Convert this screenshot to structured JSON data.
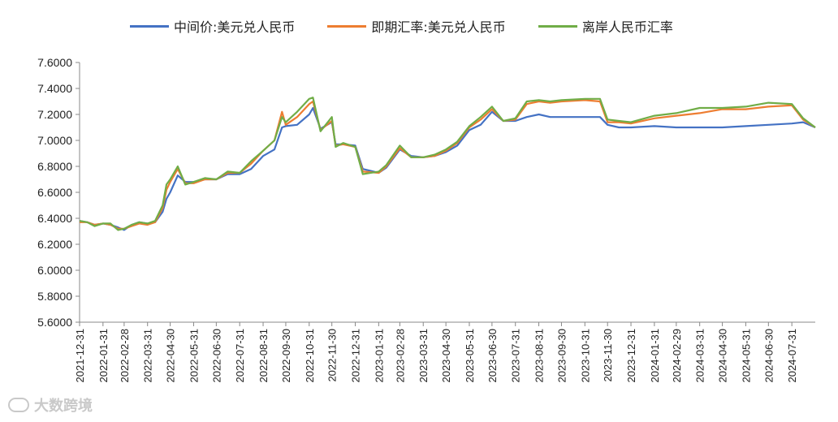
{
  "chart_data": {
    "type": "line",
    "title": "",
    "xlabel": "",
    "ylabel": "",
    "ylim": [
      5.6,
      7.6
    ],
    "y_ticks": [
      "5.6000",
      "5.8000",
      "6.0000",
      "6.2000",
      "6.4000",
      "6.6000",
      "6.8000",
      "7.0000",
      "7.2000",
      "7.4000",
      "7.6000"
    ],
    "x_ticks": [
      "2021-12-31",
      "2022-01-31",
      "2022-02-28",
      "2022-03-31",
      "2022-04-30",
      "2022-05-31",
      "2022-06-30",
      "2022-07-31",
      "2022-08-31",
      "2022-09-30",
      "2022-10-31",
      "2022-11-30",
      "2022-12-31",
      "2023-01-31",
      "2023-02-28",
      "2023-03-31",
      "2023-04-30",
      "2023-05-31",
      "2023-06-30",
      "2023-07-31",
      "2023-08-31",
      "2023-09-30",
      "2023-10-31",
      "2023-11-30",
      "2023-12-31",
      "2024-01-31",
      "2024-02-29",
      "2024-03-31",
      "2024-04-30",
      "2024-05-31",
      "2024-06-30",
      "2024-07-31"
    ],
    "x_range": [
      "2021-12-31",
      "2024-08-31"
    ],
    "legend_position": "top",
    "grid": false,
    "series": [
      {
        "name": "中间价:美元兑人民币",
        "color": "#4472C4",
        "points": [
          [
            "2021-12-31",
            6.38
          ],
          [
            "2022-01-10",
            6.37
          ],
          [
            "2022-01-20",
            6.35
          ],
          [
            "2022-01-31",
            6.36
          ],
          [
            "2022-02-10",
            6.35
          ],
          [
            "2022-02-20",
            6.33
          ],
          [
            "2022-02-28",
            6.31
          ],
          [
            "2022-03-10",
            6.35
          ],
          [
            "2022-03-20",
            6.37
          ],
          [
            "2022-03-31",
            6.36
          ],
          [
            "2022-04-10",
            6.37
          ],
          [
            "2022-04-20",
            6.45
          ],
          [
            "2022-04-25",
            6.55
          ],
          [
            "2022-04-30",
            6.6
          ],
          [
            "2022-05-10",
            6.73
          ],
          [
            "2022-05-20",
            6.68
          ],
          [
            "2022-05-31",
            6.68
          ],
          [
            "2022-06-15",
            6.7
          ],
          [
            "2022-06-30",
            6.7
          ],
          [
            "2022-07-15",
            6.74
          ],
          [
            "2022-07-31",
            6.74
          ],
          [
            "2022-08-15",
            6.78
          ],
          [
            "2022-08-31",
            6.88
          ],
          [
            "2022-09-15",
            6.93
          ],
          [
            "2022-09-25",
            7.1
          ],
          [
            "2022-09-30",
            7.11
          ],
          [
            "2022-10-15",
            7.12
          ],
          [
            "2022-10-31",
            7.2
          ],
          [
            "2022-11-05",
            7.25
          ],
          [
            "2022-11-15",
            7.09
          ],
          [
            "2022-11-30",
            7.14
          ],
          [
            "2022-12-05",
            6.97
          ],
          [
            "2022-12-15",
            6.97
          ],
          [
            "2022-12-31",
            6.96
          ],
          [
            "2023-01-10",
            6.78
          ],
          [
            "2023-01-31",
            6.75
          ],
          [
            "2023-02-10",
            6.79
          ],
          [
            "2023-02-28",
            6.93
          ],
          [
            "2023-03-15",
            6.88
          ],
          [
            "2023-03-31",
            6.87
          ],
          [
            "2023-04-15",
            6.88
          ],
          [
            "2023-04-30",
            6.91
          ],
          [
            "2023-05-15",
            6.96
          ],
          [
            "2023-05-31",
            7.08
          ],
          [
            "2023-06-15",
            7.12
          ],
          [
            "2023-06-30",
            7.22
          ],
          [
            "2023-07-15",
            7.15
          ],
          [
            "2023-07-31",
            7.15
          ],
          [
            "2023-08-15",
            7.18
          ],
          [
            "2023-08-31",
            7.2
          ],
          [
            "2023-09-15",
            7.18
          ],
          [
            "2023-09-30",
            7.18
          ],
          [
            "2023-10-31",
            7.18
          ],
          [
            "2023-11-20",
            7.18
          ],
          [
            "2023-11-30",
            7.12
          ],
          [
            "2023-12-15",
            7.1
          ],
          [
            "2023-12-31",
            7.1
          ],
          [
            "2024-01-31",
            7.11
          ],
          [
            "2024-02-29",
            7.1
          ],
          [
            "2024-03-31",
            7.1
          ],
          [
            "2024-04-30",
            7.1
          ],
          [
            "2024-05-31",
            7.11
          ],
          [
            "2024-06-30",
            7.12
          ],
          [
            "2024-07-31",
            7.13
          ],
          [
            "2024-08-15",
            7.14
          ],
          [
            "2024-08-31",
            7.1
          ]
        ]
      },
      {
        "name": "即期汇率:美元兑人民币",
        "color": "#ED7D31",
        "points": [
          [
            "2021-12-31",
            6.37
          ],
          [
            "2022-01-10",
            6.37
          ],
          [
            "2022-01-20",
            6.35
          ],
          [
            "2022-01-31",
            6.36
          ],
          [
            "2022-02-10",
            6.35
          ],
          [
            "2022-02-20",
            6.32
          ],
          [
            "2022-02-28",
            6.32
          ],
          [
            "2022-03-10",
            6.34
          ],
          [
            "2022-03-20",
            6.36
          ],
          [
            "2022-03-31",
            6.35
          ],
          [
            "2022-04-10",
            6.37
          ],
          [
            "2022-04-20",
            6.48
          ],
          [
            "2022-04-25",
            6.62
          ],
          [
            "2022-04-30",
            6.68
          ],
          [
            "2022-05-10",
            6.78
          ],
          [
            "2022-05-20",
            6.67
          ],
          [
            "2022-05-31",
            6.67
          ],
          [
            "2022-06-15",
            6.7
          ],
          [
            "2022-06-30",
            6.7
          ],
          [
            "2022-07-15",
            6.75
          ],
          [
            "2022-07-31",
            6.75
          ],
          [
            "2022-08-15",
            6.82
          ],
          [
            "2022-08-31",
            6.92
          ],
          [
            "2022-09-15",
            7.0
          ],
          [
            "2022-09-25",
            7.22
          ],
          [
            "2022-09-30",
            7.12
          ],
          [
            "2022-10-15",
            7.18
          ],
          [
            "2022-10-31",
            7.28
          ],
          [
            "2022-11-05",
            7.3
          ],
          [
            "2022-11-15",
            7.08
          ],
          [
            "2022-11-30",
            7.15
          ],
          [
            "2022-12-05",
            6.96
          ],
          [
            "2022-12-15",
            6.97
          ],
          [
            "2022-12-31",
            6.95
          ],
          [
            "2023-01-10",
            6.76
          ],
          [
            "2023-01-31",
            6.75
          ],
          [
            "2023-02-10",
            6.8
          ],
          [
            "2023-02-28",
            6.94
          ],
          [
            "2023-03-15",
            6.87
          ],
          [
            "2023-03-31",
            6.87
          ],
          [
            "2023-04-15",
            6.88
          ],
          [
            "2023-04-30",
            6.92
          ],
          [
            "2023-05-15",
            6.98
          ],
          [
            "2023-05-31",
            7.1
          ],
          [
            "2023-06-15",
            7.16
          ],
          [
            "2023-06-30",
            7.24
          ],
          [
            "2023-07-15",
            7.15
          ],
          [
            "2023-07-31",
            7.16
          ],
          [
            "2023-08-15",
            7.28
          ],
          [
            "2023-08-31",
            7.3
          ],
          [
            "2023-09-15",
            7.29
          ],
          [
            "2023-09-30",
            7.3
          ],
          [
            "2023-10-31",
            7.31
          ],
          [
            "2023-11-20",
            7.3
          ],
          [
            "2023-11-30",
            7.14
          ],
          [
            "2023-12-15",
            7.14
          ],
          [
            "2023-12-31",
            7.13
          ],
          [
            "2024-01-31",
            7.17
          ],
          [
            "2024-02-29",
            7.19
          ],
          [
            "2024-03-31",
            7.21
          ],
          [
            "2024-04-30",
            7.24
          ],
          [
            "2024-05-31",
            7.24
          ],
          [
            "2024-06-30",
            7.26
          ],
          [
            "2024-07-31",
            7.27
          ],
          [
            "2024-08-15",
            7.16
          ],
          [
            "2024-08-31",
            7.1
          ]
        ]
      },
      {
        "name": "离岸人民币汇率",
        "color": "#70AD47",
        "points": [
          [
            "2021-12-31",
            6.38
          ],
          [
            "2022-01-10",
            6.37
          ],
          [
            "2022-01-20",
            6.34
          ],
          [
            "2022-01-31",
            6.36
          ],
          [
            "2022-02-10",
            6.36
          ],
          [
            "2022-02-20",
            6.31
          ],
          [
            "2022-02-28",
            6.32
          ],
          [
            "2022-03-10",
            6.35
          ],
          [
            "2022-03-20",
            6.37
          ],
          [
            "2022-03-31",
            6.36
          ],
          [
            "2022-04-10",
            6.38
          ],
          [
            "2022-04-20",
            6.5
          ],
          [
            "2022-04-25",
            6.66
          ],
          [
            "2022-04-30",
            6.7
          ],
          [
            "2022-05-10",
            6.8
          ],
          [
            "2022-05-20",
            6.66
          ],
          [
            "2022-05-31",
            6.68
          ],
          [
            "2022-06-15",
            6.71
          ],
          [
            "2022-06-30",
            6.7
          ],
          [
            "2022-07-15",
            6.76
          ],
          [
            "2022-07-31",
            6.75
          ],
          [
            "2022-08-15",
            6.84
          ],
          [
            "2022-08-31",
            6.92
          ],
          [
            "2022-09-15",
            7.0
          ],
          [
            "2022-09-25",
            7.18
          ],
          [
            "2022-09-30",
            7.14
          ],
          [
            "2022-10-15",
            7.22
          ],
          [
            "2022-10-31",
            7.32
          ],
          [
            "2022-11-05",
            7.33
          ],
          [
            "2022-11-15",
            7.07
          ],
          [
            "2022-11-30",
            7.18
          ],
          [
            "2022-12-05",
            6.95
          ],
          [
            "2022-12-15",
            6.98
          ],
          [
            "2022-12-31",
            6.95
          ],
          [
            "2023-01-10",
            6.74
          ],
          [
            "2023-01-31",
            6.76
          ],
          [
            "2023-02-10",
            6.81
          ],
          [
            "2023-02-28",
            6.96
          ],
          [
            "2023-03-15",
            6.87
          ],
          [
            "2023-03-31",
            6.87
          ],
          [
            "2023-04-15",
            6.89
          ],
          [
            "2023-04-30",
            6.93
          ],
          [
            "2023-05-15",
            6.99
          ],
          [
            "2023-05-31",
            7.11
          ],
          [
            "2023-06-15",
            7.18
          ],
          [
            "2023-06-30",
            7.26
          ],
          [
            "2023-07-15",
            7.15
          ],
          [
            "2023-07-31",
            7.17
          ],
          [
            "2023-08-15",
            7.3
          ],
          [
            "2023-08-31",
            7.31
          ],
          [
            "2023-09-15",
            7.3
          ],
          [
            "2023-09-30",
            7.31
          ],
          [
            "2023-10-31",
            7.32
          ],
          [
            "2023-11-20",
            7.32
          ],
          [
            "2023-11-30",
            7.16
          ],
          [
            "2023-12-15",
            7.15
          ],
          [
            "2023-12-31",
            7.14
          ],
          [
            "2024-01-31",
            7.19
          ],
          [
            "2024-02-29",
            7.21
          ],
          [
            "2024-03-31",
            7.25
          ],
          [
            "2024-04-30",
            7.25
          ],
          [
            "2024-05-31",
            7.26
          ],
          [
            "2024-06-30",
            7.29
          ],
          [
            "2024-07-31",
            7.28
          ],
          [
            "2024-08-15",
            7.17
          ],
          [
            "2024-08-31",
            7.1
          ]
        ]
      }
    ]
  },
  "watermark": {
    "text": "大数跨境",
    "icon": "brand-logo-icon"
  }
}
